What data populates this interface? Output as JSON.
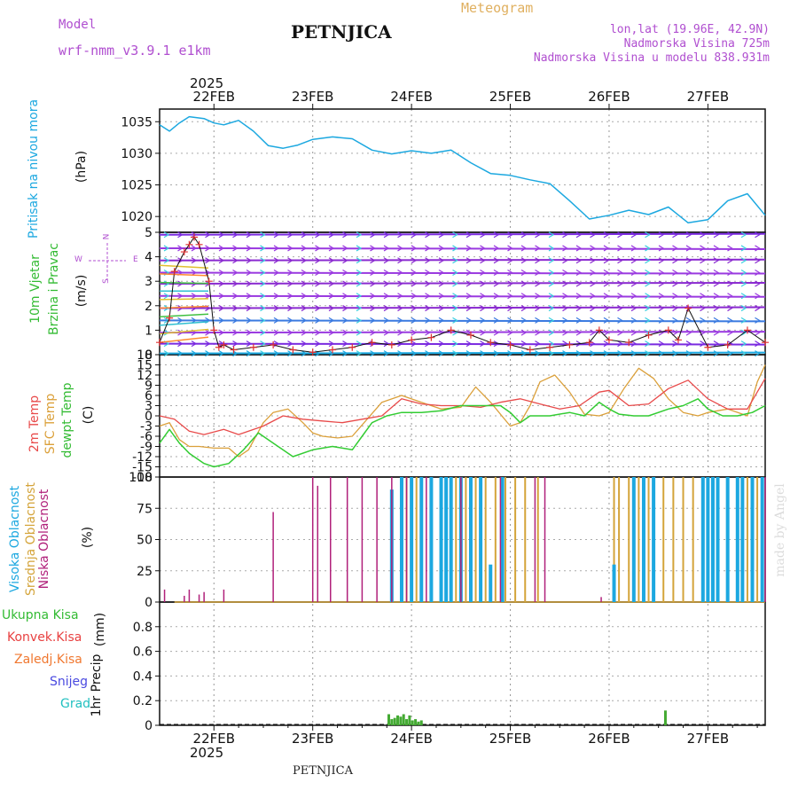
{
  "header": {
    "model_label": "Model",
    "model_name": "wrf-nmm_v3.9.1  e1km",
    "station": "PETNJICA",
    "product": "Meteogram",
    "coords": "lon,lat (19.96E, 42.9N)",
    "altitude": "Nadmorska Visina 725m",
    "model_altitude": "Nadmorska Visina u modelu 838.931m",
    "footer_station": "PETNJICA",
    "credit": "made by Angel"
  },
  "colors": {
    "pressure": "#1ca8e0",
    "t2m": "#e84a4a",
    "tsfc": "#dba03a",
    "dew": "#33cc33",
    "high_cloud": "#1ca8e0",
    "mid_cloud": "#d4a43a",
    "low_cloud": "#b0207a",
    "precip": "#44aa33",
    "wind_obs": "#e03030"
  },
  "time_axis": {
    "top_year": "2025",
    "bottom_year": "2025",
    "days": [
      "22FEB",
      "23FEB",
      "24FEB",
      "25FEB",
      "26FEB",
      "27FEB"
    ],
    "start_day_offset": -0.55,
    "end_day_offset": 5.58
  },
  "panels": {
    "pressure": {
      "ylabel_main": "Pritisak na nivou mora",
      "ylabel_unit": "(hPa)",
      "ticks": [
        1020,
        1025,
        1030,
        1035
      ],
      "ylim": [
        1017.5,
        1037
      ]
    },
    "wind": {
      "ylabel_main": "10m Vjetar",
      "ylabel_sub": "Brzina i Pravac",
      "ylabel_unit": "(m/s)",
      "compass_n": "N",
      "compass_s": "S",
      "compass_w": "W",
      "compass_e": "E",
      "ticks": [
        0,
        1,
        2,
        3,
        4,
        5
      ],
      "ylim": [
        0,
        5
      ]
    },
    "temperature": {
      "ylabel_t2m": "2m Temp",
      "ylabel_tsfc": "SFC Temp",
      "ylabel_dew": "dewpt Temp",
      "ylabel_unit": "(C)",
      "ticks": [
        -18,
        -15,
        -12,
        -9,
        -6,
        -3,
        0,
        3,
        6,
        9,
        12,
        15,
        18
      ],
      "ylim": [
        -18,
        18
      ]
    },
    "cloud": {
      "ylabel_high": "Visoka Oblacnost",
      "ylabel_mid": "Srednja Oblacnost",
      "ylabel_low": "Niska Oblacnost",
      "ylabel_unit": "(%)",
      "ticks": [
        0,
        25,
        50,
        75,
        100
      ],
      "ylim": [
        0,
        100
      ]
    },
    "precip": {
      "legend": [
        "Ukupna Kisa",
        "Konvek.Kisa",
        "Zaledj.Kisa",
        "Snijeg",
        "Grad"
      ],
      "legend_colors": [
        "#33bb33",
        "#e84040",
        "#f07830",
        "#4a4ae0",
        "#22c0c0"
      ],
      "ylabel_main": "1hr Precip",
      "ylabel_unit": "(mm)",
      "ticks": [
        "0",
        "0.2",
        "0.4",
        "0.6",
        "0.8"
      ],
      "tick_values": [
        0,
        0.2,
        0.4,
        0.6,
        0.8
      ],
      "ylim": [
        0,
        1
      ]
    }
  },
  "chart_data": [
    {
      "type": "line",
      "name_panel": "pressure",
      "series": [
        {
          "name": "MSLP",
          "x": [
            -0.55,
            -0.45,
            -0.35,
            -0.25,
            -0.1,
            0.0,
            0.1,
            0.25,
            0.4,
            0.55,
            0.7,
            0.85,
            1.0,
            1.2,
            1.4,
            1.6,
            1.8,
            2.0,
            2.2,
            2.4,
            2.6,
            2.8,
            3.0,
            3.2,
            3.4,
            3.6,
            3.8,
            4.0,
            4.2,
            4.4,
            4.6,
            4.8,
            5.0,
            5.2,
            5.4,
            5.58
          ],
          "y": [
            1034.5,
            1033.5,
            1034.8,
            1035.8,
            1035.5,
            1034.8,
            1034.5,
            1035.2,
            1033.5,
            1031.2,
            1030.8,
            1031.3,
            1032.2,
            1032.6,
            1032.3,
            1030.5,
            1029.9,
            1030.4,
            1030.0,
            1030.5,
            1028.5,
            1026.8,
            1026.5,
            1025.8,
            1025.2,
            1022.5,
            1019.6,
            1020.2,
            1021.0,
            1020.3,
            1021.5,
            1019.0,
            1019.5,
            1022.5,
            1023.6,
            1020.2
          ]
        }
      ],
      "ylim": [
        1017.5,
        1037
      ]
    },
    {
      "type": "line",
      "name_panel": "wind",
      "series": [
        {
          "name": "speed",
          "x": [
            -0.55,
            -0.45,
            -0.4,
            -0.3,
            -0.25,
            -0.2,
            -0.15,
            -0.05,
            0.0,
            0.05,
            0.1,
            0.2,
            0.4,
            0.6,
            0.8,
            1.0,
            1.2,
            1.4,
            1.6,
            1.8,
            2.0,
            2.2,
            2.4,
            2.6,
            2.8,
            3.0,
            3.2,
            3.4,
            3.6,
            3.8,
            3.9,
            4.0,
            4.2,
            4.4,
            4.6,
            4.7,
            4.8,
            5.0,
            5.2,
            5.4,
            5.58
          ],
          "y": [
            0.5,
            1.5,
            3.4,
            4.2,
            4.5,
            4.8,
            4.5,
            3.0,
            1.0,
            0.3,
            0.4,
            0.2,
            0.3,
            0.4,
            0.2,
            0.1,
            0.2,
            0.3,
            0.5,
            0.4,
            0.6,
            0.7,
            1.0,
            0.8,
            0.5,
            0.4,
            0.2,
            0.3,
            0.4,
            0.5,
            1.0,
            0.6,
            0.5,
            0.8,
            1.0,
            0.6,
            1.9,
            0.3,
            0.4,
            1.0,
            0.5
          ]
        }
      ],
      "ylim": [
        0,
        5
      ]
    },
    {
      "type": "line",
      "name_panel": "temperature",
      "series": [
        {
          "name": "2m",
          "x": [
            -0.55,
            -0.4,
            -0.25,
            -0.1,
            0.1,
            0.25,
            0.5,
            0.7,
            0.9,
            1.1,
            1.3,
            1.5,
            1.7,
            1.9,
            2.1,
            2.3,
            2.5,
            2.7,
            2.9,
            3.1,
            3.3,
            3.5,
            3.7,
            3.9,
            4.0,
            4.2,
            4.4,
            4.6,
            4.8,
            5.0,
            5.2,
            5.4,
            5.58
          ],
          "y": [
            0,
            -1,
            -4.5,
            -5.5,
            -4,
            -5.5,
            -3,
            0,
            -1,
            -1.5,
            -2,
            -1,
            0,
            5,
            3.5,
            3,
            3,
            2.5,
            4,
            5,
            3.5,
            2,
            3,
            7,
            7.5,
            3,
            3.5,
            8,
            10.5,
            5,
            2,
            2,
            11
          ]
        },
        {
          "name": "SFC",
          "x": [
            -0.55,
            -0.45,
            -0.35,
            -0.25,
            -0.15,
            0.0,
            0.15,
            0.25,
            0.35,
            0.5,
            0.6,
            0.75,
            0.9,
            1.0,
            1.1,
            1.25,
            1.4,
            1.55,
            1.7,
            1.9,
            2.1,
            2.3,
            2.5,
            2.65,
            2.8,
            3.0,
            3.1,
            3.2,
            3.3,
            3.45,
            3.6,
            3.75,
            3.9,
            4.0,
            4.15,
            4.3,
            4.45,
            4.6,
            4.75,
            4.9,
            5.0,
            5.2,
            5.4,
            5.5,
            5.58
          ],
          "y": [
            -3,
            -2,
            -7,
            -9,
            -9,
            -9.5,
            -9.5,
            -12,
            -10,
            -2,
            1,
            2,
            -2,
            -5,
            -6,
            -6.5,
            -6,
            -1,
            4,
            6,
            4,
            2,
            2.5,
            8.5,
            4,
            -3,
            -2,
            3,
            10,
            12,
            7,
            0.5,
            0,
            1,
            8,
            14,
            11,
            5,
            1,
            0,
            1,
            2,
            0,
            10,
            15
          ]
        },
        {
          "name": "dew",
          "x": [
            -0.55,
            -0.45,
            -0.35,
            -0.25,
            -0.1,
            0.0,
            0.15,
            0.3,
            0.45,
            0.6,
            0.8,
            1.0,
            1.2,
            1.4,
            1.5,
            1.6,
            1.75,
            1.9,
            2.1,
            2.3,
            2.5,
            2.7,
            2.9,
            3.0,
            3.1,
            3.2,
            3.4,
            3.6,
            3.75,
            3.9,
            4.0,
            4.1,
            4.25,
            4.4,
            4.6,
            4.75,
            4.9,
            5.0,
            5.15,
            5.3,
            5.45,
            5.58
          ],
          "y": [
            -8,
            -4,
            -8,
            -11,
            -14,
            -15,
            -14,
            -10,
            -5,
            -8,
            -12,
            -10,
            -9,
            -10,
            -6,
            -2,
            0,
            1,
            1,
            1.5,
            3,
            3,
            3,
            1,
            -2,
            0,
            0,
            1,
            0,
            4,
            2,
            0.5,
            0,
            0,
            2,
            3,
            5,
            2,
            0,
            0,
            1,
            3
          ]
        }
      ],
      "ylim": [
        -18,
        18
      ]
    },
    {
      "type": "bar",
      "name_panel": "cloud",
      "series": [
        {
          "name": "low",
          "x": [
            -0.5,
            -0.3,
            -0.25,
            -0.15,
            -0.1,
            0.1,
            0.6,
            1.0,
            1.05,
            1.18,
            1.35,
            1.5,
            1.65,
            1.8,
            1.95,
            2.15,
            2.5,
            2.9,
            3.25,
            3.35,
            3.92,
            5.58
          ],
          "y": [
            10,
            5,
            10,
            6,
            8,
            10,
            72,
            100,
            93,
            100,
            100,
            100,
            100,
            100,
            100,
            100,
            100,
            100,
            100,
            100,
            4,
            100
          ]
        },
        {
          "name": "mid",
          "x": [
            1.95,
            2.05,
            2.45,
            2.55,
            2.65,
            2.75,
            2.85,
            2.95,
            3.05,
            3.15,
            3.28,
            4.05,
            4.1,
            4.2,
            4.3,
            4.4,
            4.55,
            4.65,
            4.75,
            4.85,
            4.95,
            5.1,
            5.2,
            5.3,
            5.4,
            5.5
          ],
          "y": [
            100,
            100,
            100,
            100,
            100,
            100,
            100,
            100,
            100,
            100,
            100,
            100,
            100,
            100,
            100,
            100,
            100,
            100,
            100,
            100,
            100,
            100,
            100,
            100,
            100,
            100
          ]
        },
        {
          "name": "high",
          "x": [
            1.8,
            1.9,
            2.0,
            2.1,
            2.2,
            2.3,
            2.35,
            2.4,
            2.5,
            2.6,
            2.7,
            2.8,
            2.92,
            4.05,
            4.25,
            4.35,
            4.45,
            4.95,
            5.0,
            5.05,
            5.1,
            5.2,
            5.3,
            5.35,
            5.45,
            5.55
          ],
          "y": [
            90,
            100,
            100,
            100,
            100,
            100,
            100,
            100,
            100,
            100,
            100,
            30,
            100,
            30,
            100,
            100,
            100,
            100,
            100,
            100,
            100,
            100,
            100,
            100,
            100,
            100
          ]
        }
      ],
      "ylim": [
        0,
        100
      ]
    },
    {
      "type": "bar",
      "name_panel": "precip",
      "series": [
        {
          "name": "total",
          "x": [
            1.77,
            1.8,
            1.83,
            1.86,
            1.89,
            1.92,
            1.95,
            1.98,
            2.01,
            2.04,
            2.07,
            2.1,
            4.57
          ],
          "y": [
            0.09,
            0.05,
            0.06,
            0.08,
            0.07,
            0.09,
            0.05,
            0.08,
            0.04,
            0.05,
            0.03,
            0.04,
            0.12
          ]
        }
      ],
      "ylim": [
        0,
        1
      ]
    }
  ]
}
